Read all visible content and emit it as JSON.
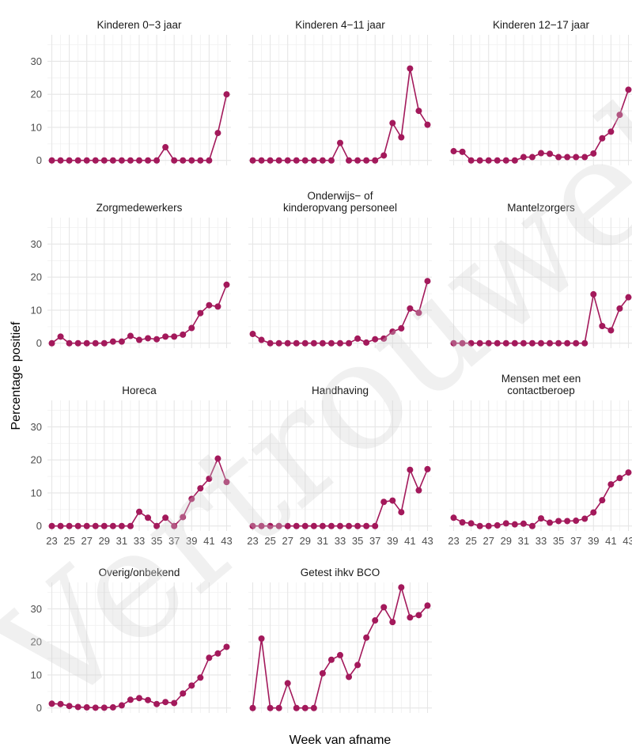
{
  "chart_data": {
    "type": "line",
    "xlabel": "Week van afname",
    "ylabel": "Percentage positief",
    "x": [
      23,
      24,
      25,
      26,
      27,
      28,
      29,
      30,
      31,
      32,
      33,
      34,
      35,
      36,
      37,
      38,
      39,
      40,
      41,
      42,
      43
    ],
    "x_tick_labels": [
      "23",
      "25",
      "27",
      "29",
      "31",
      "33",
      "35",
      "37",
      "39",
      "41",
      "43"
    ],
    "y_tick_labels": [
      "0",
      "10",
      "20",
      "30"
    ],
    "ylim": [
      -1.5,
      38
    ],
    "xlim": [
      22.5,
      43.5
    ],
    "grid": true,
    "line_color": "#a3195b",
    "watermark": "Vertrouwelijk",
    "panels": [
      {
        "title": [
          "Kinderen 0−3 jaar"
        ],
        "values": [
          0,
          0,
          0,
          0,
          0,
          0,
          0,
          0,
          0,
          0,
          0,
          0,
          0,
          4,
          0,
          0,
          0,
          0,
          0,
          8.3,
          20
        ]
      },
      {
        "title": [
          "Kinderen 4−11 jaar"
        ],
        "values": [
          0,
          0,
          0,
          0,
          0,
          0,
          0,
          0,
          0,
          0,
          5.3,
          0,
          0,
          0,
          0,
          1.5,
          11.3,
          7,
          27.8,
          15,
          10.8
        ]
      },
      {
        "title": [
          "Kinderen 12−17 jaar"
        ],
        "values": [
          2.8,
          2.6,
          0,
          0,
          0,
          0,
          0,
          0,
          1,
          1,
          2.2,
          2,
          1,
          1,
          1,
          1,
          2.1,
          6.7,
          8.7,
          13.8,
          21.4
        ]
      },
      {
        "title": [
          "Zorgmedewerkers"
        ],
        "values": [
          0,
          2,
          0,
          0,
          0,
          0,
          0,
          0.5,
          0.5,
          2.2,
          1,
          1.5,
          1.2,
          2,
          2,
          2.6,
          4.6,
          9.1,
          11.5,
          11.1,
          17.7
        ]
      },
      {
        "title": [
          "Onderwijs− of",
          "kinderopvang personeel"
        ],
        "values": [
          2.8,
          1,
          0,
          0,
          0,
          0,
          0,
          0,
          0,
          0,
          0,
          0,
          1.4,
          0.2,
          1.2,
          1.4,
          3.5,
          4.5,
          10.5,
          9.2,
          18.8
        ]
      },
      {
        "title": [
          "Mantelzorgers"
        ],
        "values": [
          0,
          0,
          0,
          0,
          0,
          0,
          0,
          0,
          0,
          0,
          0,
          0,
          0,
          0,
          0,
          0,
          14.8,
          5.2,
          3.9,
          10.5,
          13.9
        ]
      },
      {
        "title": [
          "Horeca"
        ],
        "values": [
          0,
          0,
          0,
          0,
          0,
          0,
          0,
          0,
          0,
          0,
          4.3,
          2.5,
          0,
          2.5,
          0,
          2.7,
          8.2,
          11.4,
          14.3,
          20.4,
          13.3
        ]
      },
      {
        "title": [
          "Handhaving"
        ],
        "values": [
          0,
          0,
          0,
          0,
          0,
          0,
          0,
          0,
          0,
          0,
          0,
          0,
          0,
          0,
          0,
          7.3,
          7.7,
          4.2,
          17,
          10.8,
          17.2
        ]
      },
      {
        "title": [
          "Mensen met een",
          "contactberoep"
        ],
        "values": [
          2.5,
          1.1,
          0.8,
          0,
          0,
          0.2,
          0.8,
          0.5,
          0.7,
          0,
          2.3,
          1,
          1.5,
          1.5,
          1.6,
          2.2,
          4.1,
          7.8,
          12.6,
          14.5,
          16.2
        ]
      },
      {
        "title": [
          "Overig/onbekend"
        ],
        "values": [
          1.3,
          1.2,
          0.6,
          0.3,
          0.2,
          0.1,
          0.1,
          0.2,
          0.8,
          2.5,
          3,
          2.4,
          1.2,
          1.8,
          1.5,
          4.4,
          6.8,
          9.2,
          15.2,
          16.5,
          18.5
        ]
      },
      {
        "title": [
          "Getest ihkv BCO"
        ],
        "values": [
          0,
          21,
          0,
          0,
          7.5,
          0,
          0,
          0,
          10.5,
          14.6,
          16,
          9.4,
          13,
          21.3,
          26.5,
          30.5,
          26,
          36.5,
          27.4,
          28.1,
          31
        ]
      }
    ]
  }
}
